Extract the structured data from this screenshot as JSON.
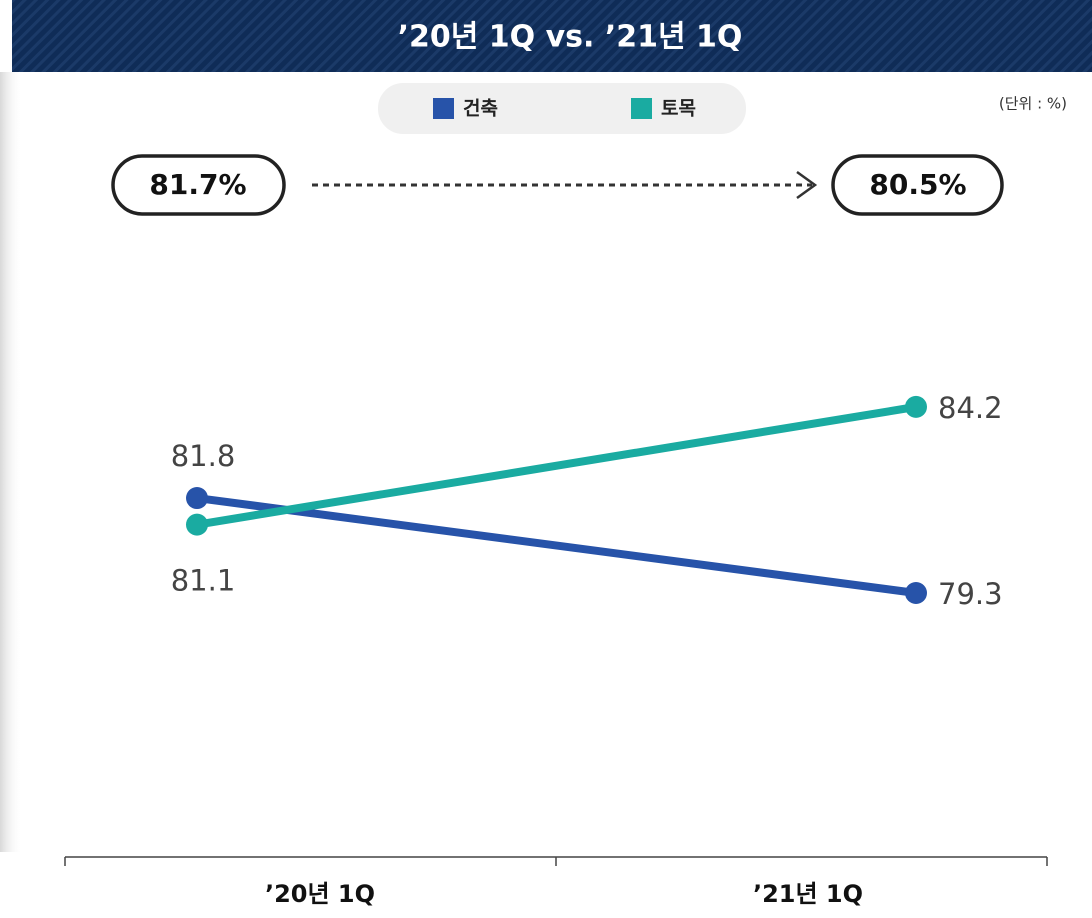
{
  "chart_data": {
    "type": "line",
    "title": "’20년 1Q vs. ’21년 1Q",
    "unit_note": "(단위 : %)",
    "annotations": [
      "81.7%",
      "80.5%"
    ],
    "categories": [
      "’20년 1Q",
      "’21년 1Q"
    ],
    "series": [
      {
        "name": "건축",
        "color": "#2753a9",
        "values": [
          81.8,
          79.3
        ]
      },
      {
        "name": "토목",
        "color": "#1aaba1",
        "values": [
          81.1,
          84.2
        ]
      }
    ],
    "ylim": [
      72.35,
      89.12
    ]
  }
}
